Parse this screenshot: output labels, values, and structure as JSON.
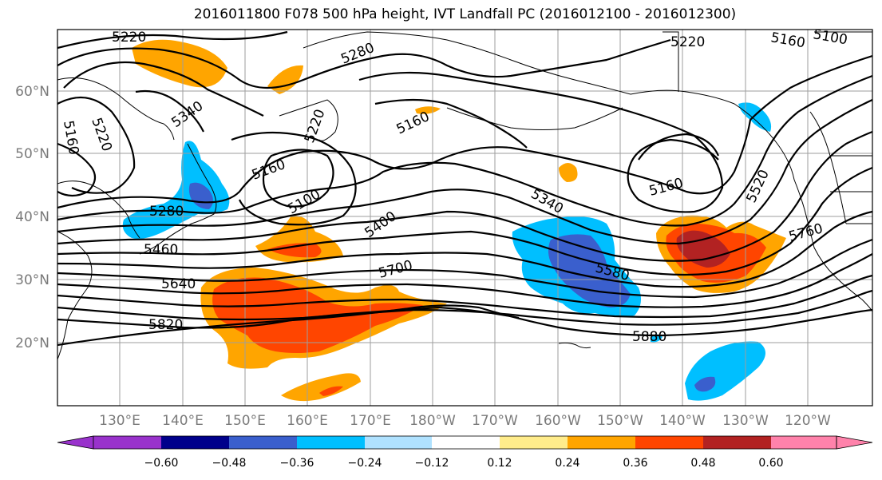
{
  "title": "2016011800 F078 500 hPa height, IVT Landfall PC (2016012100 - 2016012300)",
  "lat_labels": [
    "60°N",
    "50°N",
    "40°N",
    "30°N",
    "20°N"
  ],
  "lon_labels": [
    "130°E",
    "140°E",
    "150°E",
    "160°E",
    "170°E",
    "180°W",
    "170°W",
    "160°W",
    "150°W",
    "140°W",
    "130°W",
    "120°W"
  ],
  "contour_labels": [
    "5220",
    "5280",
    "5340",
    "5160",
    "5220",
    "5160",
    "5220",
    "5160",
    "5100",
    "5280",
    "5400",
    "5340",
    "5160",
    "5460",
    "5640",
    "5700",
    "5580",
    "5520",
    "5760",
    "5820",
    "5880",
    "5220",
    "5160",
    "5100"
  ],
  "colorbar": {
    "ticks": [
      "−0.60",
      "−0.48",
      "−0.36",
      "−0.24",
      "−0.12",
      "0.12",
      "0.24",
      "0.36",
      "0.48",
      "0.60"
    ],
    "colors": [
      "#9932cc",
      "#00008b",
      "#3a5fcd",
      "#00bfff",
      "#b0e2ff",
      "#ffffff",
      "#ffec8b",
      "#ffa500",
      "#ff4500",
      "#b22222",
      "#ff82ab"
    ]
  }
}
